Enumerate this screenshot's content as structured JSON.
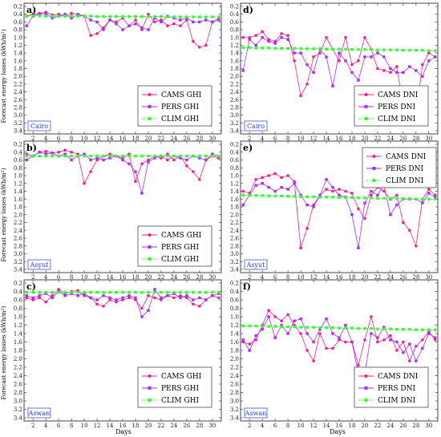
{
  "figure": {
    "ylabel_text": "Forecast energy losses (kWh/m",
    "ylabel_sup": "2",
    "ylabel_close": ")",
    "xlabel": "Days",
    "colors": {
      "CAMS": "#ff1a86",
      "PERS": "#a82bff",
      "CLIM": "#2dff2d",
      "site_label": "#2a3dcc",
      "frame": "#444444"
    }
  },
  "chart_data": [
    {
      "id": "a",
      "panel_label": "a)",
      "site": "Cairo",
      "type": "line",
      "ylim": [
        0.2,
        3.4
      ],
      "yticks": [
        "0.2",
        "0.4",
        "0.6",
        "0.8",
        "1.0",
        "1.2",
        "1.4",
        "1.6",
        "1.8",
        "2.0",
        "2.2",
        "2.4",
        "2.6",
        "2.8",
        "3.0",
        "3.2",
        "3.4"
      ],
      "xticks": [
        "2",
        "4",
        "6",
        "8",
        "10",
        "12",
        "14",
        "16",
        "18",
        "20",
        "22",
        "24",
        "26",
        "28",
        "30"
      ],
      "x": [
        1,
        2,
        3,
        4,
        5,
        6,
        7,
        8,
        9,
        10,
        11,
        12,
        13,
        14,
        15,
        16,
        17,
        18,
        19,
        20,
        21,
        22,
        23,
        24,
        25,
        26,
        27,
        28,
        29,
        30,
        31
      ],
      "series": [
        {
          "name": "CAMS GHI",
          "values": [
            0.45,
            0.4,
            0.38,
            0.35,
            0.42,
            0.4,
            0.45,
            0.38,
            0.4,
            0.45,
            0.95,
            0.9,
            0.75,
            0.55,
            0.6,
            0.5,
            0.7,
            0.55,
            0.8,
            0.4,
            0.6,
            0.55,
            0.7,
            0.65,
            0.7,
            0.55,
            1.1,
            1.25,
            1.2,
            0.6,
            0.5
          ]
        },
        {
          "name": "PERS GHI",
          "values": [
            0.7,
            0.45,
            0.4,
            0.38,
            0.5,
            0.45,
            0.4,
            0.5,
            0.42,
            0.45,
            0.55,
            0.6,
            0.8,
            0.55,
            0.65,
            0.8,
            0.7,
            0.65,
            0.75,
            0.8,
            0.5,
            0.6,
            0.45,
            0.5,
            0.55,
            0.5,
            0.6,
            0.6,
            0.55,
            0.6,
            0.55
          ]
        },
        {
          "name": "CLIM GHI",
          "values": [
            0.44,
            0.44,
            0.44,
            0.45,
            0.45,
            0.45,
            0.45,
            0.45,
            0.45,
            0.45,
            0.45,
            0.46,
            0.46,
            0.46,
            0.46,
            0.46,
            0.46,
            0.46,
            0.46,
            0.46,
            0.46,
            0.46,
            0.47,
            0.47,
            0.47,
            0.47,
            0.47,
            0.47,
            0.47,
            0.47,
            0.47
          ]
        }
      ]
    },
    {
      "id": "d",
      "panel_label": "d)",
      "site": "Cairo",
      "type": "line",
      "ylim": [
        0.2,
        3.4
      ],
      "yticks": [
        "0.2",
        "0.4",
        "0.6",
        "0.8",
        "1.0",
        "1.2",
        "1.4",
        "1.6",
        "1.8",
        "2.0",
        "2.2",
        "2.4",
        "2.6",
        "2.8",
        "3.0",
        "3.2",
        "3.4"
      ],
      "xticks": [
        "2",
        "4",
        "6",
        "8",
        "10",
        "12",
        "14",
        "16",
        "18",
        "20",
        "22",
        "24",
        "26",
        "28",
        "30"
      ],
      "x": [
        1,
        2,
        3,
        4,
        5,
        6,
        7,
        8,
        9,
        10,
        11,
        12,
        13,
        14,
        15,
        16,
        17,
        18,
        19,
        20,
        21,
        22,
        23,
        24,
        25,
        26,
        27,
        28,
        29,
        30,
        31
      ],
      "series": [
        {
          "name": "CAMS DNI",
          "values": [
            1.0,
            1.0,
            0.95,
            0.85,
            1.05,
            1.1,
            0.9,
            0.95,
            1.6,
            2.5,
            2.2,
            1.5,
            1.4,
            1.0,
            1.3,
            1.6,
            1.0,
            1.7,
            1.6,
            1.0,
            1.3,
            1.8,
            1.85,
            1.9,
            1.75,
            2.8,
            3.15,
            3.0,
            1.7,
            1.4,
            1.5
          ]
        },
        {
          "name": "PERS DNI",
          "values": [
            1.85,
            1.05,
            1.2,
            1.0,
            1.1,
            1.15,
            1.0,
            1.05,
            1.4,
            1.4,
            1.7,
            1.9,
            1.3,
            1.5,
            2.25,
            1.4,
            1.6,
            1.9,
            2.1,
            1.5,
            1.5,
            1.4,
            1.5,
            1.8,
            1.9,
            1.9,
            1.75,
            1.85,
            2.0,
            1.6,
            1.5
          ]
        },
        {
          "name": "CLIM DNI",
          "values": [
            1.26,
            1.26,
            1.27,
            1.27,
            1.27,
            1.28,
            1.28,
            1.28,
            1.28,
            1.29,
            1.29,
            1.29,
            1.29,
            1.3,
            1.3,
            1.3,
            1.3,
            1.31,
            1.31,
            1.31,
            1.31,
            1.32,
            1.32,
            1.32,
            1.32,
            1.33,
            1.33,
            1.33,
            1.33,
            1.34,
            1.34
          ]
        }
      ]
    },
    {
      "id": "b",
      "panel_label": "b)",
      "site": "Asyut",
      "type": "line",
      "ylim": [
        0.2,
        3.4
      ],
      "yticks": [
        "0.2",
        "0.4",
        "0.6",
        "0.8",
        "1.0",
        "1.2",
        "1.4",
        "1.6",
        "1.8",
        "2.0",
        "2.2",
        "2.4",
        "2.6",
        "2.8",
        "3.0",
        "3.2",
        "3.4"
      ],
      "xticks": [
        "2",
        "4",
        "6",
        "8",
        "10",
        "12",
        "14",
        "16",
        "18",
        "20",
        "22",
        "24",
        "26",
        "28",
        "30"
      ],
      "x": [
        1,
        2,
        3,
        4,
        5,
        6,
        7,
        8,
        9,
        10,
        11,
        12,
        13,
        14,
        15,
        16,
        17,
        18,
        19,
        20,
        21,
        22,
        23,
        24,
        25,
        26,
        27,
        28,
        29,
        30,
        31
      ],
      "series": [
        {
          "name": "CAMS GHI",
          "values": [
            0.45,
            0.5,
            0.4,
            0.38,
            0.42,
            0.4,
            0.35,
            0.4,
            0.45,
            1.2,
            0.9,
            0.6,
            0.5,
            0.45,
            0.5,
            0.55,
            0.45,
            1.15,
            0.7,
            0.6,
            0.5,
            0.55,
            0.45,
            0.6,
            0.5,
            0.75,
            0.9,
            1.1,
            0.6,
            0.5,
            0.55
          ]
        },
        {
          "name": "PERS GHI",
          "values": [
            0.6,
            0.5,
            0.4,
            0.45,
            0.42,
            0.5,
            0.45,
            0.6,
            0.5,
            0.45,
            0.6,
            0.55,
            0.6,
            0.55,
            0.5,
            0.6,
            0.7,
            0.9,
            1.45,
            0.65,
            0.55,
            0.5,
            0.6,
            0.5,
            0.55,
            0.6,
            0.5,
            0.55,
            0.6,
            0.45,
            0.5
          ]
        },
        {
          "name": "CLIM GHI",
          "values": [
            0.5,
            0.5,
            0.5,
            0.5,
            0.5,
            0.5,
            0.5,
            0.5,
            0.5,
            0.5,
            0.5,
            0.5,
            0.5,
            0.5,
            0.5,
            0.5,
            0.5,
            0.5,
            0.5,
            0.5,
            0.5,
            0.5,
            0.5,
            0.5,
            0.5,
            0.5,
            0.5,
            0.5,
            0.5,
            0.5,
            0.5
          ]
        }
      ]
    },
    {
      "id": "e",
      "panel_label": "e)",
      "site": "Asyut",
      "type": "line",
      "ylim": [
        0.2,
        3.4
      ],
      "yticks": [
        "0.2",
        "0.4",
        "0.6",
        "0.8",
        "1.0",
        "1.2",
        "1.4",
        "1.6",
        "1.8",
        "2.0",
        "2.2",
        "2.4",
        "2.6",
        "2.8",
        "3.0",
        "3.2",
        "3.4"
      ],
      "xticks": [
        "2",
        "4",
        "6",
        "8",
        "10",
        "12",
        "14",
        "16",
        "18",
        "20",
        "22",
        "24",
        "26",
        "28",
        "30"
      ],
      "x": [
        1,
        2,
        3,
        4,
        5,
        6,
        7,
        8,
        9,
        10,
        11,
        12,
        13,
        14,
        15,
        16,
        17,
        18,
        19,
        20,
        21,
        22,
        23,
        24,
        25,
        26,
        27,
        28,
        29,
        30,
        31
      ],
      "series": [
        {
          "name": "CAMS DNI",
          "values": [
            1.4,
            1.45,
            1.1,
            1.05,
            1.0,
            0.95,
            1.05,
            1.0,
            1.15,
            2.85,
            2.35,
            1.75,
            1.5,
            1.35,
            1.4,
            1.35,
            1.4,
            1.45,
            1.85,
            2.1,
            1.5,
            1.3,
            1.4,
            1.6,
            1.5,
            2.2,
            2.4,
            2.8,
            1.6,
            1.35,
            1.5
          ]
        },
        {
          "name": "PERS DNI",
          "values": [
            1.75,
            1.5,
            1.25,
            1.2,
            1.3,
            1.4,
            1.3,
            1.35,
            1.2,
            1.5,
            1.75,
            1.8,
            1.5,
            1.1,
            1.3,
            1.5,
            1.55,
            2.0,
            2.85,
            1.7,
            1.4,
            1.5,
            1.25,
            2.0,
            1.75,
            1.6,
            1.6,
            1.6,
            1.7,
            1.45,
            1.55
          ]
        },
        {
          "name": "CLIM DNI",
          "values": [
            1.5,
            1.5,
            1.51,
            1.51,
            1.52,
            1.52,
            1.52,
            1.53,
            1.53,
            1.54,
            1.54,
            1.54,
            1.55,
            1.55,
            1.55,
            1.56,
            1.56,
            1.56,
            1.57,
            1.57,
            1.57,
            1.58,
            1.58,
            1.58,
            1.59,
            1.59,
            1.59,
            1.6,
            1.6,
            1.6,
            1.6
          ]
        }
      ]
    },
    {
      "id": "c",
      "panel_label": "c)",
      "site": "Aswan",
      "type": "line",
      "ylim": [
        0.2,
        3.4
      ],
      "yticks": [
        "0.2",
        "0.4",
        "0.6",
        "0.8",
        "1.0",
        "1.2",
        "1.4",
        "1.6",
        "1.8",
        "2.0",
        "2.2",
        "2.4",
        "2.6",
        "2.8",
        "3.0",
        "3.2",
        "3.4"
      ],
      "xticks": [
        "2",
        "4",
        "6",
        "8",
        "10",
        "12",
        "14",
        "16",
        "18",
        "20",
        "22",
        "24",
        "26",
        "28",
        "30"
      ],
      "x": [
        1,
        2,
        3,
        4,
        5,
        6,
        7,
        8,
        9,
        10,
        11,
        12,
        13,
        14,
        15,
        16,
        17,
        18,
        19,
        20,
        21,
        22,
        23,
        24,
        25,
        26,
        27,
        28,
        29,
        30,
        31
      ],
      "series": [
        {
          "name": "CAMS GHI",
          "values": [
            0.55,
            0.6,
            0.55,
            0.65,
            0.5,
            0.35,
            0.45,
            0.4,
            0.38,
            0.5,
            0.55,
            0.7,
            0.75,
            0.6,
            0.65,
            0.6,
            0.55,
            0.6,
            0.8,
            0.5,
            0.55,
            0.6,
            0.5,
            0.55,
            0.5,
            0.55,
            0.7,
            0.75,
            0.6,
            0.5,
            0.55
          ]
        },
        {
          "name": "PERS GHI",
          "values": [
            0.5,
            0.55,
            0.5,
            0.45,
            0.55,
            0.4,
            0.5,
            0.45,
            0.5,
            0.45,
            0.55,
            0.6,
            0.5,
            0.55,
            0.6,
            0.55,
            0.5,
            0.55,
            1.0,
            0.85,
            0.35,
            0.55,
            0.5,
            0.45,
            0.55,
            0.5,
            0.6,
            0.55,
            0.6,
            0.5,
            0.45
          ]
        },
        {
          "name": "CLIM GHI",
          "values": [
            0.42,
            0.42,
            0.42,
            0.42,
            0.42,
            0.42,
            0.42,
            0.42,
            0.42,
            0.42,
            0.42,
            0.42,
            0.42,
            0.42,
            0.42,
            0.42,
            0.42,
            0.42,
            0.42,
            0.42,
            0.42,
            0.42,
            0.42,
            0.42,
            0.42,
            0.42,
            0.42,
            0.42,
            0.42,
            0.42,
            0.42
          ]
        }
      ]
    },
    {
      "id": "f",
      "panel_label": "f)",
      "site": "Aswan",
      "type": "line",
      "ylim": [
        0.2,
        3.4
      ],
      "yticks": [
        "0.2",
        "0.4",
        "0.6",
        "0.8",
        "1.0",
        "1.2",
        "1.4",
        "1.6",
        "1.8",
        "2.0",
        "2.2",
        "2.4",
        "2.6",
        "2.8",
        "3.0",
        "3.2",
        "3.4"
      ],
      "xticks": [
        "2",
        "4",
        "6",
        "8",
        "10",
        "12",
        "14",
        "16",
        "18",
        "20",
        "22",
        "24",
        "26",
        "28",
        "30"
      ],
      "x": [
        1,
        2,
        3,
        4,
        5,
        6,
        7,
        8,
        9,
        10,
        11,
        12,
        13,
        14,
        15,
        16,
        17,
        18,
        19,
        20,
        21,
        22,
        23,
        24,
        25,
        26,
        27,
        28,
        29,
        30,
        31
      ],
      "series": [
        {
          "name": "CAMS DNI",
          "values": [
            1.6,
            1.65,
            1.55,
            1.2,
            0.85,
            1.0,
            1.1,
            0.95,
            1.2,
            1.4,
            1.8,
            2.05,
            1.4,
            1.75,
            1.75,
            1.55,
            1.6,
            1.6,
            2.15,
            1.55,
            1.0,
            1.6,
            1.55,
            1.45,
            1.8,
            1.6,
            2.05,
            1.7,
            1.55,
            1.35,
            1.55
          ]
        },
        {
          "name": "PERS DNI",
          "values": [
            1.55,
            1.8,
            1.45,
            1.3,
            1.0,
            1.5,
            1.2,
            1.4,
            1.1,
            1.05,
            1.4,
            1.6,
            1.3,
            1.05,
            1.4,
            1.5,
            1.2,
            1.6,
            2.35,
            2.35,
            1.4,
            1.5,
            1.25,
            1.55,
            1.6,
            1.85,
            1.65,
            2.05,
            1.75,
            1.4,
            1.5
          ]
        },
        {
          "name": "CLIM DNI",
          "values": [
            1.22,
            1.22,
            1.22,
            1.23,
            1.23,
            1.23,
            1.24,
            1.24,
            1.24,
            1.25,
            1.25,
            1.25,
            1.26,
            1.26,
            1.26,
            1.27,
            1.27,
            1.27,
            1.28,
            1.28,
            1.28,
            1.29,
            1.29,
            1.29,
            1.3,
            1.3,
            1.3,
            1.31,
            1.31,
            1.31,
            1.31
          ]
        }
      ]
    }
  ]
}
